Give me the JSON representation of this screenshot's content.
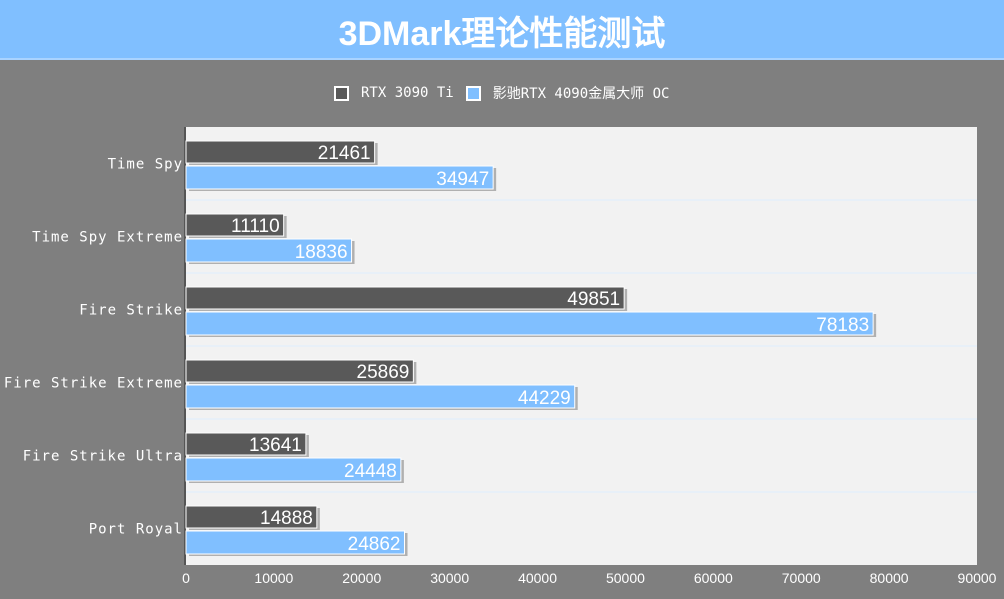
{
  "title": "3DMark理论性能测试",
  "colors": {
    "background": "#7f7f7f",
    "title_bar": "#80bfff",
    "plot_bg": "#f2f2f2"
  },
  "chart_data": {
    "type": "bar",
    "orientation": "horizontal",
    "title": "3DMark理论性能测试",
    "categories": [
      "Time Spy",
      "Time Spy Extreme",
      "Fire Strike",
      "Fire Strike Extreme",
      "Fire Strike Ultra",
      "Port Royal"
    ],
    "series": [
      {
        "name": "RTX 3090 Ti",
        "color": "#595959",
        "values": [
          21461,
          11110,
          49851,
          25869,
          13641,
          14888
        ]
      },
      {
        "name": "影驰RTX 4090金属大师 OC",
        "color": "#80bfff",
        "values": [
          34947,
          18836,
          78183,
          44229,
          24448,
          24862
        ]
      }
    ],
    "xlim": [
      0,
      90000
    ],
    "xticks": [
      0,
      10000,
      20000,
      30000,
      40000,
      50000,
      60000,
      70000,
      80000,
      90000
    ],
    "grid": true,
    "legend": "top"
  }
}
